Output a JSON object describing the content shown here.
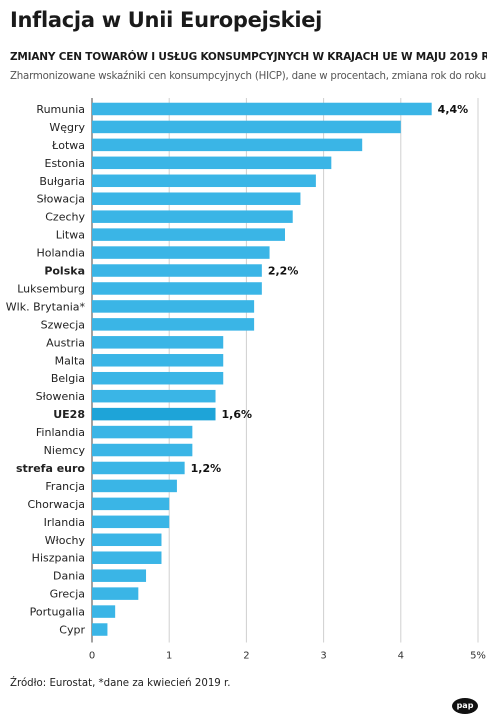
{
  "header": {
    "title": "Inflacja w Unii Europejskiej",
    "subtitle": "ZMIANY CEN TOWARÓW I USŁUG KONSUMPCYJNYCH W KRAJACH UE W MAJU 2019 R.",
    "note": "Zharmonizowane wskaźniki cen konsumpcyjnych (HICP), dane w procentach, zmiana rok do roku"
  },
  "footer": {
    "source": "Źródło: Eurostat, *dane za kwiecień 2019 r.",
    "logo": "pap"
  },
  "colors": {
    "bar": "#3ab5e6",
    "bar_highlight": "#1ea4d8",
    "grid": "#d0d0d0",
    "axis": "#444444"
  },
  "chart_data": {
    "type": "bar",
    "orientation": "horizontal",
    "title": "Inflacja w Unii Europejskiej",
    "xlim": [
      0,
      5
    ],
    "ticks": [
      {
        "value": 0,
        "label": "0"
      },
      {
        "value": 1,
        "label": "1"
      },
      {
        "value": 2,
        "label": "2"
      },
      {
        "value": 3,
        "label": "3"
      },
      {
        "value": 4,
        "label": "4"
      },
      {
        "value": 5,
        "label": "5%"
      }
    ],
    "grid": true,
    "bars": [
      {
        "category": "Rumunia",
        "value": 4.4,
        "label": "4,4%"
      },
      {
        "category": "Węgry",
        "value": 4.0
      },
      {
        "category": "Łotwa",
        "value": 3.5
      },
      {
        "category": "Estonia",
        "value": 3.1
      },
      {
        "category": "Bułgaria",
        "value": 2.9
      },
      {
        "category": "Słowacja",
        "value": 2.7
      },
      {
        "category": "Czechy",
        "value": 2.6
      },
      {
        "category": "Litwa",
        "value": 2.5
      },
      {
        "category": "Holandia",
        "value": 2.3
      },
      {
        "category": "Polska",
        "value": 2.2,
        "label": "2,2%",
        "highlight": true
      },
      {
        "category": "Luksemburg",
        "value": 2.2
      },
      {
        "category": "Wlk. Brytania*",
        "value": 2.1
      },
      {
        "category": "Szwecja",
        "value": 2.1
      },
      {
        "category": "Austria",
        "value": 1.7
      },
      {
        "category": "Malta",
        "value": 1.7
      },
      {
        "category": "Belgia",
        "value": 1.7
      },
      {
        "category": "Słowenia",
        "value": 1.6
      },
      {
        "category": "UE28",
        "value": 1.6,
        "label": "1,6%",
        "highlight": true
      },
      {
        "category": "Finlandia",
        "value": 1.3
      },
      {
        "category": "Niemcy",
        "value": 1.3
      },
      {
        "category": "strefa euro",
        "value": 1.2,
        "label": "1,2%",
        "highlight": true
      },
      {
        "category": "Francja",
        "value": 1.1
      },
      {
        "category": "Chorwacja",
        "value": 1.0
      },
      {
        "category": "Irlandia",
        "value": 1.0
      },
      {
        "category": "Włochy",
        "value": 0.9
      },
      {
        "category": "Hiszpania",
        "value": 0.9
      },
      {
        "category": "Dania",
        "value": 0.7
      },
      {
        "category": "Grecja",
        "value": 0.6
      },
      {
        "category": "Portugalia",
        "value": 0.3
      },
      {
        "category": "Cypr",
        "value": 0.2
      }
    ]
  }
}
